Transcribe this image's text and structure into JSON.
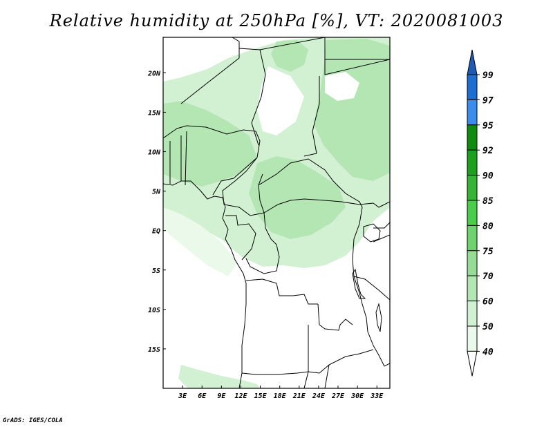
{
  "title": "Relative humidity at 250hPa [%], VT: 2020081003",
  "credit": "GrADS: IGES/COLA",
  "map": {
    "lon_range_deg": [
      0,
      35
    ],
    "lat_range_deg": [
      -20,
      24.5
    ],
    "lon_ticks": [
      {
        "lon": 3,
        "label": "3E"
      },
      {
        "lon": 6,
        "label": "6E"
      },
      {
        "lon": 9,
        "label": "9E"
      },
      {
        "lon": 12,
        "label": "12E"
      },
      {
        "lon": 15,
        "label": "15E"
      },
      {
        "lon": 18,
        "label": "18E"
      },
      {
        "lon": 21,
        "label": "21E"
      },
      {
        "lon": 24,
        "label": "24E"
      },
      {
        "lon": 27,
        "label": "27E"
      },
      {
        "lon": 30,
        "label": "30E"
      },
      {
        "lon": 33,
        "label": "33E"
      }
    ],
    "lat_ticks": [
      {
        "lat": 20,
        "label": "20N"
      },
      {
        "lat": 15,
        "label": "15N"
      },
      {
        "lat": 10,
        "label": "10N"
      },
      {
        "lat": 5,
        "label": "5N"
      },
      {
        "lat": 0,
        "label": "EQ"
      },
      {
        "lat": -5,
        "label": "5S"
      },
      {
        "lat": -10,
        "label": "10S"
      },
      {
        "lat": -15,
        "label": "15S"
      }
    ]
  },
  "colorbar": {
    "labels": [
      "99",
      "97",
      "95",
      "92",
      "90",
      "85",
      "80",
      "75",
      "70",
      "60",
      "50",
      "40"
    ],
    "segments": [
      {
        "from": 97,
        "to": 99,
        "color": "#1e6ed2"
      },
      {
        "from": 95,
        "to": 97,
        "color": "#3c8ceb"
      },
      {
        "from": 92,
        "to": 95,
        "color": "#0f8c0f"
      },
      {
        "from": 90,
        "to": 92,
        "color": "#1ea01e"
      },
      {
        "from": 85,
        "to": 90,
        "color": "#37b437"
      },
      {
        "from": 80,
        "to": 85,
        "color": "#4bcd4b"
      },
      {
        "from": 75,
        "to": 80,
        "color": "#6ed26e"
      },
      {
        "from": 70,
        "to": 75,
        "color": "#96dc96"
      },
      {
        "from": 60,
        "to": 70,
        "color": "#b4e6b4"
      },
      {
        "from": 50,
        "to": 60,
        "color": "#d2f0d2"
      },
      {
        "from": 40,
        "to": 50,
        "color": "#ebf9eb"
      }
    ],
    "over_color": "#1e5ab4",
    "under_color": "#ffffff"
  }
}
